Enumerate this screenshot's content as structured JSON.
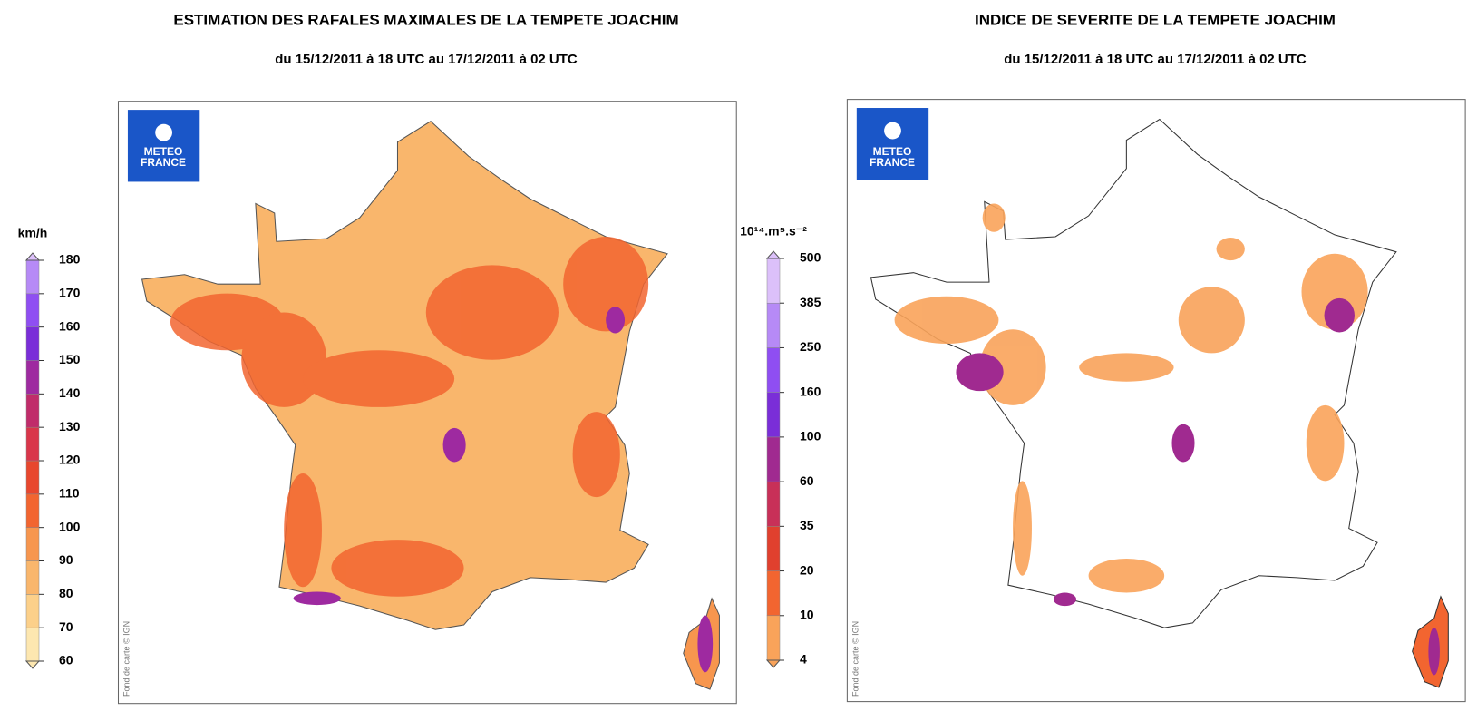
{
  "panels": [
    {
      "title": "ESTIMATION DES RAFALES MAXIMALES DE LA TEMPETE JOACHIM",
      "subtitle": "du 15/12/2011 à 18 UTC au 17/12/2011 à 02 UTC",
      "logo": [
        "METEO",
        "FRANCE"
      ],
      "credit": "Fond de carte © IGN",
      "colorbar": {
        "unit": "km/h",
        "ticks": [
          60,
          70,
          80,
          90,
          100,
          110,
          120,
          130,
          140,
          150,
          160,
          170,
          180
        ],
        "colors": [
          "#fde7b0",
          "#fcd08a",
          "#f9b66c",
          "#f7964e",
          "#f26530",
          "#e8472e",
          "#d9364a",
          "#c02c6a",
          "#9e2aa0",
          "#7a2ed8",
          "#8f4ef2",
          "#b68af6",
          "#dcc0fa"
        ]
      }
    },
    {
      "title": "INDICE DE SEVERITE DE LA TEMPETE JOACHIM",
      "subtitle": "du 15/12/2011 à 18 UTC au 17/12/2011 à 02 UTC",
      "logo": [
        "METEO",
        "FRANCE"
      ],
      "credit": "Fond de carte © IGN",
      "colorbar": {
        "unit": "10¹⁴.m⁵.s⁻²",
        "ticks": [
          4,
          10,
          20,
          35,
          60,
          100,
          160,
          250,
          385,
          500
        ],
        "colors": [
          "#f9a35a",
          "#f26530",
          "#e0402e",
          "#c83058",
          "#a02a90",
          "#7a2ed8",
          "#8f4ef2",
          "#b68af6",
          "#dcc0fa"
        ]
      }
    }
  ]
}
